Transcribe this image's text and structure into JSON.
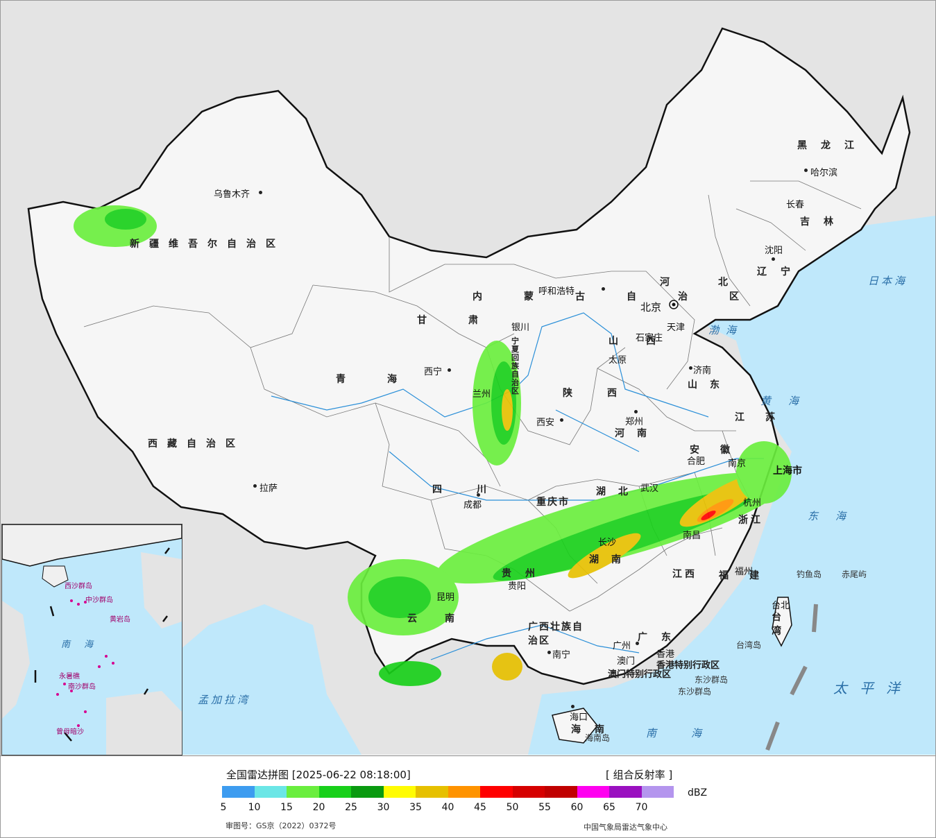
{
  "legend": {
    "title": "全国雷达拼图 [2025-06-22 08:18:00]",
    "product": "[ 组合反射率 ]",
    "unit": "dBZ",
    "colors": [
      "#3d9cf0",
      "#6be6e6",
      "#6aee3e",
      "#18d01a",
      "#0a9a10",
      "#fffc03",
      "#e6c000",
      "#ff9300",
      "#ff0000",
      "#d60000",
      "#c00000",
      "#ff00f0",
      "#9a10c0",
      "#b495ee"
    ],
    "ticks": [
      "5",
      "10",
      "15",
      "20",
      "25",
      "30",
      "35",
      "40",
      "45",
      "50",
      "55",
      "60",
      "65",
      "70"
    ],
    "approval": "审图号：GS京（2022）0372号",
    "agency": "中国气象局雷达气象中心"
  },
  "cities": {
    "urumqi": "乌鲁木齐",
    "lhasa": "拉萨",
    "xining": "西宁",
    "lanzhou": "兰州",
    "yinchuan": "银川",
    "hohhot": "呼和浩特",
    "beijing": "北京",
    "tianjin": "天津",
    "shijiazhuang": "石家庄",
    "taiyuan": "太原",
    "jinan": "济南",
    "zhengzhou": "郑州",
    "xian": "西安",
    "chengdu": "成都",
    "chongqing_city": "重庆",
    "wuhan": "武汉",
    "hefei": "合肥",
    "nanjing": "南京",
    "hangzhou": "杭州",
    "nanchang": "南昌",
    "changsha": "长沙",
    "guiyang": "贵阳",
    "kunming": "昆明",
    "nanning": "南宁",
    "guangzhou": "广州",
    "fuzhou": "福州",
    "taipei": "台北",
    "haikou": "海口",
    "shenyang": "沈阳",
    "changchun": "长春",
    "harbin": "哈尔滨",
    "macau": "澳门",
    "hongkong": "香港",
    "shanghai": "上海市"
  },
  "provinces": {
    "xinjiang": "新疆维吾尔自治区",
    "tibet": "西藏自治区",
    "qinghai": "青海",
    "gansu": "甘肃",
    "neimenggu": "内蒙古自治区",
    "heilongjiang": "黑龙江",
    "jilin": "吉林",
    "liaoning": "辽宁",
    "hebei": "河北",
    "shanxi": "山西",
    "shandong": "山东",
    "henan": "河南",
    "shaanxi": "陕西",
    "sichuan": "四川",
    "chongqing": "重庆市",
    "hubei": "湖北",
    "hunan": "湖南",
    "anhui": "安徽",
    "jiangsu": "江苏",
    "zhejiang": "浙江",
    "jiangxi": "江西",
    "fujian": "福建",
    "guizhou": "贵州",
    "yunnan": "云南",
    "guangxi": "广西壮族自治区",
    "guangdong": "广东",
    "hainan": "海南",
    "taiwan": "台湾",
    "ningxia": "宁夏回族自治区",
    "hk_sar": "香港特别行政区",
    "macau_sar": "澳门特别行政区"
  },
  "seas": {
    "bohai": "渤海",
    "huanghai": "黄海",
    "donghai": "东海",
    "nanhai": "南海",
    "riben": "日本海",
    "taipingyang": "太平洋",
    "mengjiala": "孟加拉湾"
  },
  "islands": {
    "diaoyu": "钓鱼岛",
    "chiwei": "赤尾屿",
    "taiwan_island": "台湾岛",
    "dongsha": "东沙群岛",
    "hainan_island": "海南岛"
  },
  "inset": {
    "nanhai": "南海",
    "zhongsha": "中沙群岛",
    "nansha": "南沙群岛",
    "xisha": "西沙群岛",
    "huangyan": "黄岩岛",
    "zengmu": "曾母暗沙",
    "yongshu": "永暑礁"
  }
}
